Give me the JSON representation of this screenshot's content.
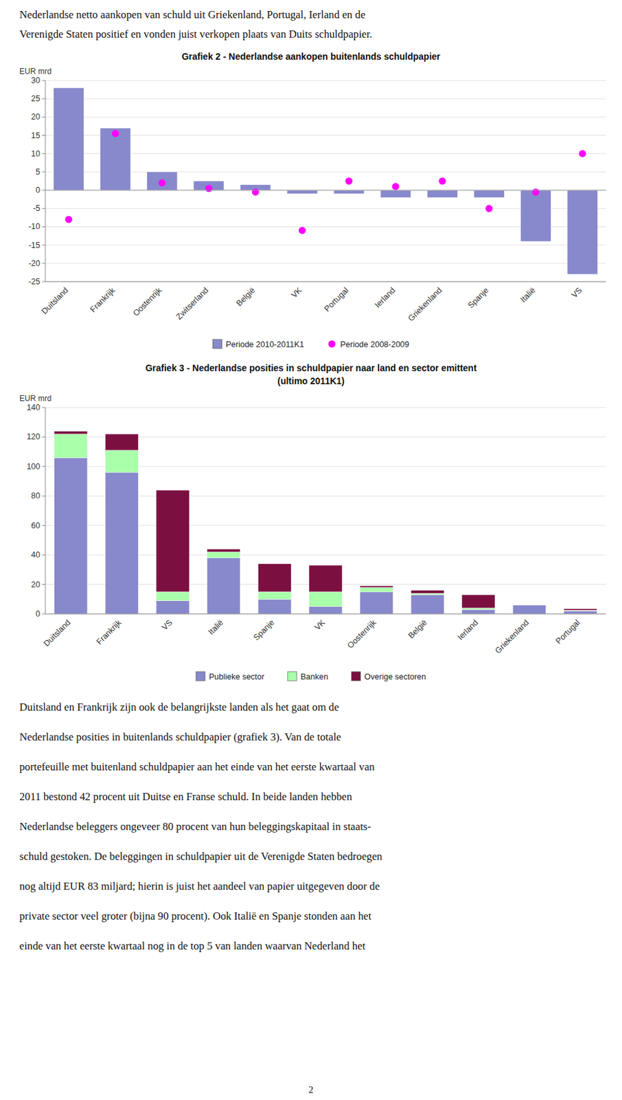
{
  "text_top": [
    "Nederlandse netto aankopen van schuld uit Griekenland, Portugal, Ierland en de",
    "Verenigde Staten positief en vonden juist verkopen plaats van Duits schuldpapier."
  ],
  "chart_data": [
    {
      "type": "bar",
      "title": "Grafiek 2 - Nederlandse aankopen buitenlands schuldpapier",
      "ylabel": "EUR mrd",
      "categories": [
        "Duitsland",
        "Frankrijk",
        "Oostenrijk",
        "Zwitserland",
        "België",
        "VK",
        "Portugal",
        "Ierland",
        "Griekenland",
        "Spanje",
        "Italië",
        "VS"
      ],
      "series": [
        {
          "name": "Periode 2010-2011K1",
          "type": "bar",
          "color": "#8888cc",
          "values": [
            28,
            17,
            5,
            2.5,
            1.5,
            -1,
            -1,
            -2,
            -2,
            -2,
            -14,
            -23
          ]
        },
        {
          "name": "Periode 2008-2009",
          "type": "scatter",
          "color": "#ff00ff",
          "values": [
            -8,
            15.5,
            2,
            0.5,
            -0.5,
            -11,
            2.5,
            1,
            2.5,
            -5,
            -0.5,
            10
          ]
        }
      ],
      "ylim": [
        -25,
        30
      ],
      "yticks": [
        -25,
        -20,
        -15,
        -10,
        -5,
        0,
        5,
        10,
        15,
        20,
        25,
        30
      ],
      "grid": true,
      "legend": "bottom"
    },
    {
      "type": "bar",
      "title": "Grafiek 3 - Nederlandse posities in schuldpapier naar land en sector emittent",
      "subtitle": "(ultimo 2011K1)",
      "ylabel": "EUR mrd",
      "categories": [
        "Duitsland",
        "Frankrijk",
        "VS",
        "Italië",
        "Spanje",
        "VK",
        "Oostenrijk",
        "België",
        "Ierland",
        "Griekenland",
        "Portugal"
      ],
      "series": [
        {
          "name": "Publieke sector",
          "color": "#8888cc",
          "values": [
            106,
            96,
            9,
            38,
            10,
            5,
            15,
            13,
            3,
            6,
            2
          ]
        },
        {
          "name": "Banken",
          "color": "#aaffaa",
          "values": [
            16,
            15,
            6,
            4,
            5,
            10,
            3,
            1,
            1,
            0,
            0.5
          ]
        },
        {
          "name": "Overige sectoren",
          "color": "#7b1040",
          "values": [
            2,
            11,
            69,
            2,
            19,
            18,
            1,
            2,
            9,
            0,
            1
          ]
        }
      ],
      "stacked": true,
      "ylim": [
        0,
        140
      ],
      "yticks": [
        0,
        20,
        40,
        60,
        80,
        100,
        120,
        140
      ],
      "grid": true,
      "legend": "bottom"
    }
  ],
  "text_bottom": [
    "Duitsland en Frankrijk zijn ook de belangrijkste landen als het gaat om de",
    "Nederlandse  posities  in buitenlands schuldpapier (grafiek 3). Van de totale",
    "portefeuille met buitenland schuldpapier aan het einde van het eerste kwartaal van",
    "2011 bestond 42 procent uit Duitse en Franse schuld. In beide landen hebben",
    "Nederlandse beleggers ongeveer 80 procent van hun beleggingskapitaal in staats-",
    "schuld gestoken. De beleggingen in schuldpapier uit de Verenigde Staten bedroegen",
    "nog altijd EUR 83 miljard; hierin is juist het aandeel van papier uitgegeven door de",
    "private sector veel groter (bijna 90 procent). Ook Italië en Spanje stonden aan het",
    "einde van het eerste kwartaal nog in de top 5 van landen waarvan Nederland het"
  ],
  "page_number": "2"
}
